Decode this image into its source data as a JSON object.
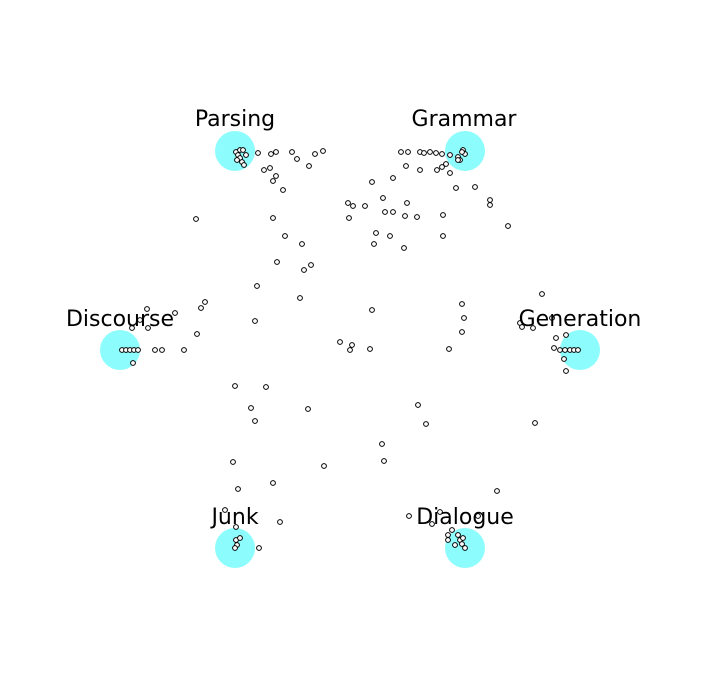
{
  "diagram": {
    "colors": {
      "anchor_fill": "#8cfcfc",
      "point_stroke": "#000000",
      "background": "#ffffff"
    },
    "anchors": [
      {
        "id": "parsing",
        "label": "Parsing"
      },
      {
        "id": "grammar",
        "label": "Grammar"
      },
      {
        "id": "discourse",
        "label": "Discourse"
      },
      {
        "id": "generation",
        "label": "Generation"
      },
      {
        "id": "junk",
        "label": "Junk"
      },
      {
        "id": "dialogue",
        "label": "Dialogue"
      }
    ]
  }
}
